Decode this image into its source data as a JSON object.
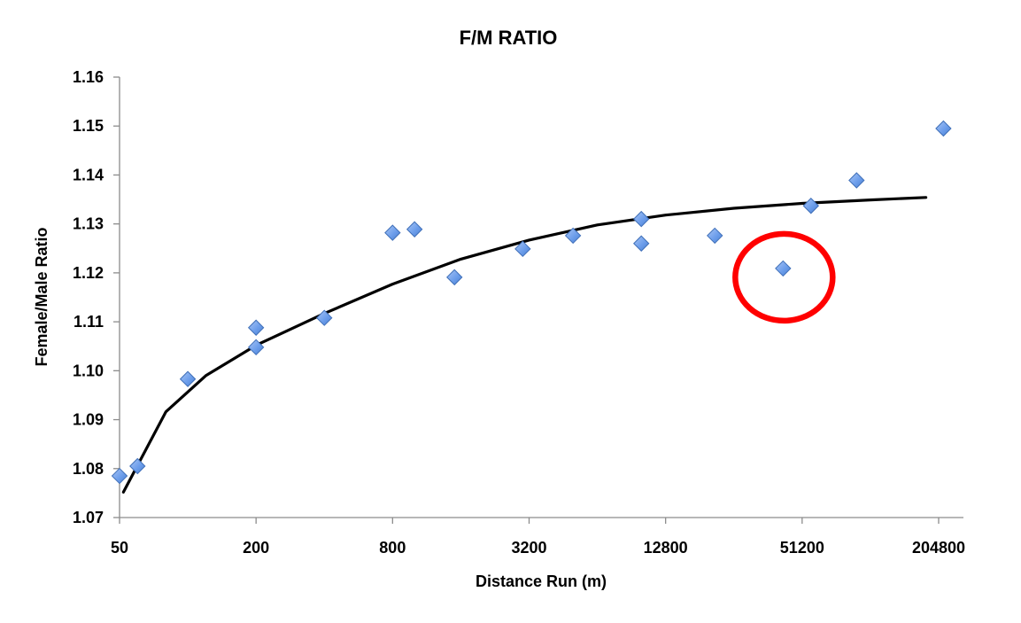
{
  "chart_data": {
    "type": "scatter",
    "title": "F/M RATIO",
    "xlabel": "Distance Run (m)",
    "ylabel": "Female/Male Ratio",
    "x_scale": "log2",
    "xlim": [
      50,
      204800
    ],
    "ylim": [
      1.07,
      1.16
    ],
    "x_ticks": [
      "50",
      "200",
      "800",
      "3200",
      "12800",
      "51200",
      "204800"
    ],
    "y_ticks": [
      "1.07",
      "1.08",
      "1.09",
      "1.10",
      "1.11",
      "1.12",
      "1.13",
      "1.14",
      "1.15",
      "1.16"
    ],
    "grid": false,
    "series": [
      {
        "marker": "diamond",
        "color": "#6d9eeb",
        "points": [
          {
            "x": 50,
            "y": 1.0785
          },
          {
            "x": 60,
            "y": 1.0805
          },
          {
            "x": 100,
            "y": 1.0983
          },
          {
            "x": 200,
            "y": 1.1048
          },
          {
            "x": 200,
            "y": 1.1088
          },
          {
            "x": 400,
            "y": 1.1108
          },
          {
            "x": 800,
            "y": 1.1282
          },
          {
            "x": 1000,
            "y": 1.1289
          },
          {
            "x": 1500,
            "y": 1.1191
          },
          {
            "x": 3000,
            "y": 1.1249
          },
          {
            "x": 5000,
            "y": 1.1276
          },
          {
            "x": 10000,
            "y": 1.126
          },
          {
            "x": 10000,
            "y": 1.131
          },
          {
            "x": 21097,
            "y": 1.1276
          },
          {
            "x": 42195,
            "y": 1.1209
          },
          {
            "x": 56000,
            "y": 1.1337
          },
          {
            "x": 89000,
            "y": 1.1389
          },
          {
            "x": 215000,
            "y": 1.1495
          }
        ]
      }
    ],
    "trendline": {
      "type": "logarithmic",
      "color": "#000000",
      "points": [
        {
          "x": 52,
          "y": 1.0752
        },
        {
          "x": 80,
          "y": 1.0916
        },
        {
          "x": 120,
          "y": 1.099
        },
        {
          "x": 200,
          "y": 1.1052
        },
        {
          "x": 400,
          "y": 1.1117
        },
        {
          "x": 800,
          "y": 1.1177
        },
        {
          "x": 1600,
          "y": 1.1228
        },
        {
          "x": 3200,
          "y": 1.1267
        },
        {
          "x": 6400,
          "y": 1.1298
        },
        {
          "x": 12800,
          "y": 1.1318
        },
        {
          "x": 25600,
          "y": 1.1332
        },
        {
          "x": 51200,
          "y": 1.1342
        },
        {
          "x": 102400,
          "y": 1.1349
        },
        {
          "x": 180000,
          "y": 1.1354
        }
      ]
    },
    "annotations": [
      {
        "type": "circle",
        "color": "#ff0000",
        "target": {
          "x": 42195,
          "y": 1.1209
        }
      }
    ]
  }
}
